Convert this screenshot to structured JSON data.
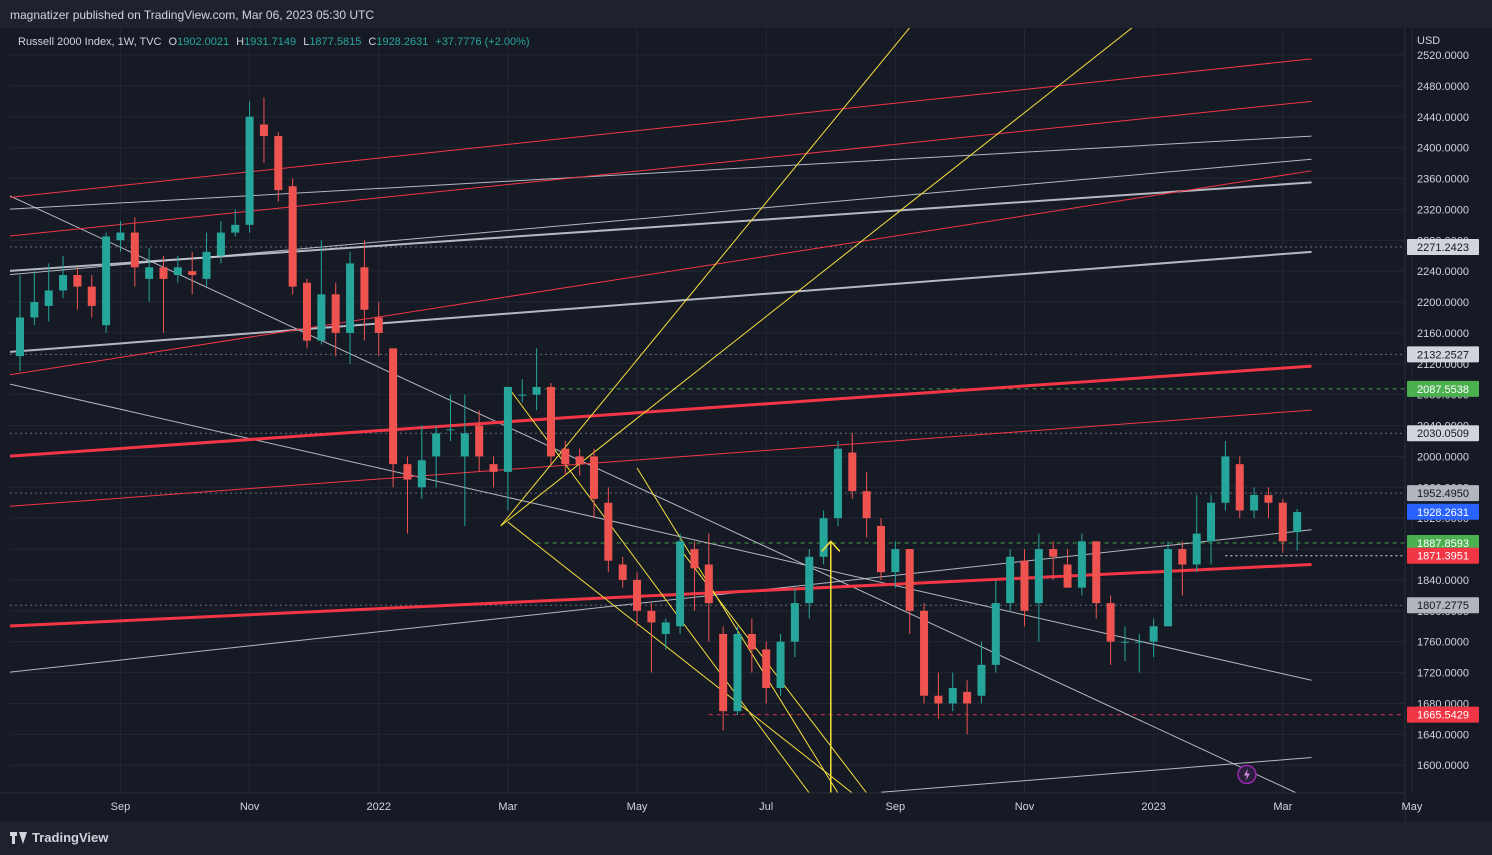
{
  "header": {
    "published": "magnatizer published on TradingView.com, Mar 06, 2023 05:30 UTC"
  },
  "legend": {
    "symbol": "Russell 2000 Index, 1W, TVC",
    "open_label": "O",
    "open": "1902.0021",
    "high_label": "H",
    "high": "1931.7149",
    "low_label": "L",
    "low": "1877.5815",
    "close_label": "C",
    "close": "1928.2631",
    "change": "+37.7776 (+2.00%)"
  },
  "footer": {
    "brand": "TradingView"
  },
  "colors": {
    "up": "#26a69a",
    "down": "#ef5350",
    "bg": "#161a25",
    "grid": "#232734",
    "trend_red": "#f23645",
    "trend_yellow": "#f7e03b",
    "trend_white": "#d1d4dc"
  },
  "chart_data": {
    "type": "candlestick",
    "currency": "USD",
    "y_ticks": [
      "1600.0000",
      "1640.0000",
      "1680.0000",
      "1720.0000",
      "1760.0000",
      "1800.0000",
      "1840.0000",
      "1880.0000",
      "1920.0000",
      "1960.0000",
      "2000.0000",
      "2040.0000",
      "2080.0000",
      "2120.0000",
      "2160.0000",
      "2200.0000",
      "2240.0000",
      "2280.0000",
      "2320.0000",
      "2360.0000",
      "2400.0000",
      "2440.0000",
      "2480.0000",
      "2520.0000"
    ],
    "ylim": [
      1564,
      2555
    ],
    "x_ticks": [
      {
        "label": "Sep",
        "week": 7
      },
      {
        "label": "Nov",
        "week": 16
      },
      {
        "label": "2022",
        "week": 25
      },
      {
        "label": "Mar",
        "week": 34
      },
      {
        "label": "May",
        "week": 43
      },
      {
        "label": "Jul",
        "week": 52
      },
      {
        "label": "Sep",
        "week": 61
      },
      {
        "label": "Nov",
        "week": 70
      },
      {
        "label": "2023",
        "week": 79
      },
      {
        "label": "Mar",
        "week": 88
      },
      {
        "label": "May",
        "week": 97
      }
    ],
    "candles": [
      [
        2130,
        2180,
        2110,
        2235
      ],
      [
        2180,
        2200,
        2170,
        2240
      ],
      [
        2195,
        2215,
        2175,
        2250
      ],
      [
        2215,
        2235,
        2205,
        2260
      ],
      [
        2235,
        2220,
        2190,
        2245
      ],
      [
        2220,
        2195,
        2180,
        2235
      ],
      [
        2170,
        2285,
        2160,
        2290
      ],
      [
        2280,
        2290,
        2265,
        2305
      ],
      [
        2290,
        2245,
        2220,
        2310
      ],
      [
        2230,
        2245,
        2200,
        2270
      ],
      [
        2245,
        2230,
        2160,
        2260
      ],
      [
        2235,
        2245,
        2225,
        2260
      ],
      [
        2240,
        2235,
        2210,
        2265
      ],
      [
        2230,
        2265,
        2220,
        2290
      ],
      [
        2260,
        2290,
        2250,
        2305
      ],
      [
        2290,
        2300,
        2285,
        2320
      ],
      [
        2300,
        2440,
        2290,
        2460
      ],
      [
        2430,
        2415,
        2380,
        2465
      ],
      [
        2415,
        2345,
        2330,
        2420
      ],
      [
        2350,
        2220,
        2210,
        2360
      ],
      [
        2225,
        2150,
        2140,
        2230
      ],
      [
        2150,
        2210,
        2145,
        2280
      ],
      [
        2210,
        2160,
        2130,
        2225
      ],
      [
        2160,
        2250,
        2120,
        2265
      ],
      [
        2245,
        2190,
        2150,
        2280
      ],
      [
        2180,
        2160,
        2130,
        2200
      ],
      [
        2140,
        1990,
        1960,
        2140
      ],
      [
        1990,
        1970,
        1900,
        2000
      ],
      [
        1960,
        1995,
        1945,
        2040
      ],
      [
        2000,
        2030,
        1960,
        2040
      ],
      [
        2035,
        2035,
        2020,
        2080
      ],
      [
        2000,
        2030,
        1910,
        2080
      ],
      [
        2040,
        2000,
        1980,
        2060
      ],
      [
        1990,
        1980,
        1960,
        2000
      ],
      [
        1980,
        2090,
        1930,
        2090
      ],
      [
        2080,
        2080,
        2070,
        2100
      ],
      [
        2080,
        2090,
        2060,
        2140
      ],
      [
        2090,
        2000,
        1990,
        2095
      ],
      [
        2010,
        1990,
        1975,
        2020
      ],
      [
        2000,
        1990,
        1975,
        2010
      ],
      [
        2000,
        1945,
        1920,
        2010
      ],
      [
        1940,
        1865,
        1850,
        1960
      ],
      [
        1860,
        1840,
        1830,
        1870
      ],
      [
        1840,
        1800,
        1780,
        1850
      ],
      [
        1800,
        1785,
        1720,
        1810
      ],
      [
        1770,
        1785,
        1750,
        1790
      ],
      [
        1780,
        1890,
        1770,
        1900
      ],
      [
        1880,
        1855,
        1800,
        1890
      ],
      [
        1860,
        1810,
        1760,
        1900
      ],
      [
        1770,
        1670,
        1645,
        1780
      ],
      [
        1670,
        1770,
        1665,
        1780
      ],
      [
        1770,
        1750,
        1720,
        1790
      ],
      [
        1750,
        1700,
        1680,
        1760
      ],
      [
        1700,
        1760,
        1690,
        1770
      ],
      [
        1760,
        1810,
        1740,
        1830
      ],
      [
        1810,
        1870,
        1790,
        1880
      ],
      [
        1870,
        1920,
        1860,
        1930
      ],
      [
        1920,
        2010,
        1910,
        2020
      ],
      [
        2005,
        1955,
        1945,
        2030
      ],
      [
        1955,
        1920,
        1895,
        1980
      ],
      [
        1910,
        1850,
        1840,
        1920
      ],
      [
        1850,
        1880,
        1830,
        1890
      ],
      [
        1880,
        1800,
        1770,
        1880
      ],
      [
        1800,
        1690,
        1680,
        1810
      ],
      [
        1690,
        1680,
        1660,
        1720
      ],
      [
        1680,
        1700,
        1670,
        1720
      ],
      [
        1695,
        1680,
        1640,
        1710
      ],
      [
        1690,
        1730,
        1680,
        1760
      ],
      [
        1730,
        1810,
        1720,
        1840
      ],
      [
        1810,
        1870,
        1800,
        1880
      ],
      [
        1865,
        1800,
        1780,
        1880
      ],
      [
        1810,
        1880,
        1760,
        1900
      ],
      [
        1880,
        1870,
        1840,
        1890
      ],
      [
        1860,
        1830,
        1830,
        1880
      ],
      [
        1830,
        1890,
        1820,
        1900
      ],
      [
        1890,
        1810,
        1790,
        1890
      ],
      [
        1810,
        1760,
        1730,
        1820
      ],
      [
        1760,
        1760,
        1735,
        1780
      ],
      [
        1760,
        1760,
        1720,
        1770
      ],
      [
        1760,
        1780,
        1740,
        1790
      ],
      [
        1780,
        1880,
        1780,
        1890
      ],
      [
        1880,
        1860,
        1820,
        1890
      ],
      [
        1860,
        1900,
        1850,
        1950
      ],
      [
        1890,
        1940,
        1860,
        1950
      ],
      [
        1940,
        2000,
        1930,
        2020
      ],
      [
        1990,
        1930,
        1920,
        2000
      ],
      [
        1930,
        1950,
        1920,
        1960
      ],
      [
        1950,
        1940,
        1920,
        1960
      ],
      [
        1940,
        1890,
        1875,
        1945
      ],
      [
        1902,
        1928,
        1878,
        1932
      ]
    ],
    "price_labels": [
      {
        "value": "2271.2423",
        "bg": "#d1d4dc",
        "fg": "#131722",
        "line": "dotted",
        "line_color": "#787b86"
      },
      {
        "value": "2132.2527",
        "bg": "#d1d4dc",
        "fg": "#131722",
        "line": "dotted",
        "line_color": "#787b86"
      },
      {
        "value": "2087.5538",
        "bg": "#4caf50",
        "fg": "#ffffff",
        "line": "dashed",
        "line_color": "#4caf50"
      },
      {
        "value": "2030.0509",
        "bg": "#d1d4dc",
        "fg": "#131722",
        "line": "dotted",
        "line_color": "#787b86"
      },
      {
        "value": "1952.4950",
        "bg": "#b2b5be",
        "fg": "#131722",
        "line": "dotted",
        "line_color": "#787b86"
      },
      {
        "value": "1928.2631",
        "bg": "#2962ff",
        "fg": "#ffffff",
        "line": "none",
        "line_color": "#2962ff"
      },
      {
        "value": "1887.8593",
        "bg": "#4caf50",
        "fg": "#ffffff",
        "line": "dashed",
        "line_color": "#4caf50"
      },
      {
        "value": "1871.3951",
        "bg": "#f23645",
        "fg": "#ffffff",
        "line": "dotted-white",
        "line_color": "#ffffff"
      },
      {
        "value": "1807.2775",
        "bg": "#b2b5be",
        "fg": "#131722",
        "line": "dotted",
        "line_color": "#787b86"
      },
      {
        "value": "1665.5429",
        "bg": "#f23645",
        "fg": "#ffffff",
        "line": "dashed",
        "line_color": "#f23645"
      }
    ],
    "trendlines": [
      {
        "color": "white",
        "w": 1,
        "a": [
          -1,
          2560
        ],
        "b": [
          90,
          2710
        ]
      },
      {
        "color": "white",
        "w": 1,
        "a": [
          -1,
          2320
        ],
        "b": [
          90,
          2415
        ]
      },
      {
        "color": "white",
        "w": 1,
        "a": [
          -1,
          2235
        ],
        "b": [
          90,
          2385
        ]
      },
      {
        "color": "white",
        "w": 2,
        "a": [
          -1,
          2240
        ],
        "b": [
          90,
          2355
        ]
      },
      {
        "color": "white",
        "w": 2,
        "a": [
          -1,
          2135
        ],
        "b": [
          90,
          2265
        ]
      },
      {
        "color": "white",
        "w": 1,
        "a": [
          -1,
          1720
        ],
        "b": [
          90,
          1905
        ]
      },
      {
        "color": "white",
        "w": 1,
        "a": [
          -1,
          2095
        ],
        "b": [
          90,
          1710
        ]
      },
      {
        "color": "white",
        "w": 1,
        "a": [
          -1,
          2340
        ],
        "b": [
          90,
          1555
        ]
      },
      {
        "color": "white",
        "w": 1,
        "a": [
          60,
          1565
        ],
        "b": [
          90,
          1610
        ]
      },
      {
        "color": "red",
        "w": 1,
        "a": [
          -1,
          2335
        ],
        "b": [
          90,
          2515
        ]
      },
      {
        "color": "red",
        "w": 1,
        "a": [
          -1,
          2285
        ],
        "b": [
          90,
          2460
        ]
      },
      {
        "color": "red",
        "w": 1,
        "a": [
          -1,
          2105
        ],
        "b": [
          90,
          2370
        ]
      },
      {
        "color": "red",
        "w": 1,
        "a": [
          -1,
          1935
        ],
        "b": [
          90,
          2060
        ]
      },
      {
        "color": "red",
        "w": 3,
        "a": [
          -1,
          2000
        ],
        "b": [
          90,
          2117
        ]
      },
      {
        "color": "red",
        "w": 3,
        "a": [
          -1,
          1780
        ],
        "b": [
          90,
          1860
        ]
      },
      {
        "color": "yellow",
        "w": 1,
        "a": [
          33.5,
          1910
        ],
        "b": [
          67.5,
          2680
        ]
      },
      {
        "color": "yellow",
        "w": 1,
        "a": [
          33.5,
          1910
        ],
        "b": [
          86,
          2680
        ]
      },
      {
        "color": "yellow",
        "w": 1,
        "a": [
          34,
          2090
        ],
        "b": [
          55,
          1564
        ]
      },
      {
        "color": "yellow",
        "w": 1,
        "a": [
          34,
          1915
        ],
        "b": [
          58,
          1564
        ]
      },
      {
        "color": "yellow",
        "w": 1,
        "a": [
          43,
          1985
        ],
        "b": [
          57,
          1564
        ]
      },
      {
        "color": "yellow",
        "w": 1,
        "a": [
          46,
          1880
        ],
        "b": [
          59,
          1564
        ]
      }
    ],
    "arrow": {
      "week": 56.5,
      "from": 1564,
      "to": 1890
    },
    "grid": true
  }
}
